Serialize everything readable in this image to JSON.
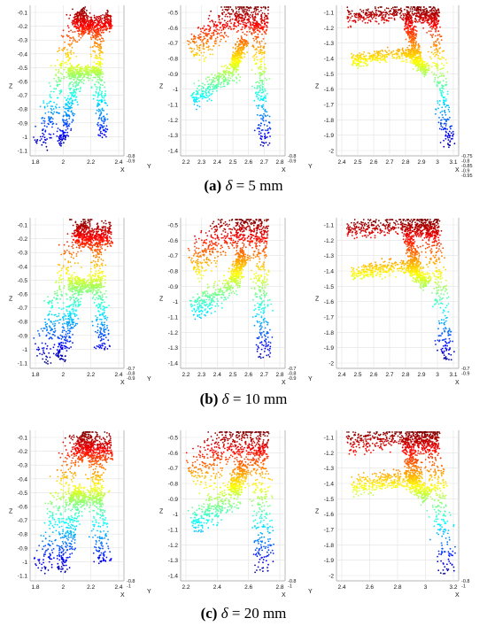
{
  "figure": {
    "rows": [
      {
        "caption": {
          "label": "(a)",
          "symbol": "δ",
          "rest": " = 5 mm"
        },
        "panels": [
          {
            "yticks": [
              "-0.1",
              "-0.2",
              "-0.3",
              "-0.4",
              "-0.5",
              "-0.6",
              "-0.7",
              "-0.8",
              "-0.9",
              "-1",
              "-1.1"
            ],
            "xticks": [
              "1.8",
              "2",
              "2.2",
              "2.4"
            ],
            "zlabel": "Z",
            "xlabel": "X",
            "ylabel": "Y",
            "corner": [
              "-0.8",
              "-0.9"
            ]
          },
          {
            "yticks": [
              "-0.5",
              "-0.6",
              "-0.7",
              "-0.8",
              "-0.9",
              "-1",
              "-1.1",
              "-1.2",
              "-1.3",
              "-1.4"
            ],
            "xticks": [
              "2.2",
              "2.3",
              "2.4",
              "2.5",
              "2.6",
              "2.7",
              "2.8"
            ],
            "zlabel": "Z",
            "xlabel": "X",
            "ylabel": "Y",
            "corner": [
              "-0.8",
              "-0.9"
            ]
          },
          {
            "yticks": [
              "-1.1",
              "-1.2",
              "-1.3",
              "-1.4",
              "-1.5",
              "-1.6",
              "-1.7",
              "-1.8",
              "-1.9",
              "-2"
            ],
            "xticks": [
              "2.4",
              "2.5",
              "2.6",
              "2.7",
              "2.8",
              "2.9",
              "3",
              "3.1"
            ],
            "zlabel": "Z",
            "xlabel": "X",
            "ylabel": "",
            "corner": [
              "-0.75",
              "-0.8",
              "-0.85",
              "-0.9",
              "-0.95"
            ]
          }
        ]
      },
      {
        "caption": {
          "label": "(b)",
          "symbol": "δ",
          "rest": " = 10 mm"
        },
        "panels": [
          {
            "yticks": [
              "-0.1",
              "-0.2",
              "-0.3",
              "-0.4",
              "-0.5",
              "-0.6",
              "-0.7",
              "-0.8",
              "-0.9",
              "-1",
              "-1.1"
            ],
            "xticks": [
              "1.8",
              "2",
              "2.2",
              "2.4"
            ],
            "zlabel": "Z",
            "xlabel": "X",
            "ylabel": "Y",
            "corner": [
              "-0.7",
              "-0.8",
              "-0.9"
            ]
          },
          {
            "yticks": [
              "-0.5",
              "-0.6",
              "-0.7",
              "-0.8",
              "-0.9",
              "-1",
              "-1.1",
              "-1.2",
              "-1.3",
              "-1.4"
            ],
            "xticks": [
              "2.2",
              "2.3",
              "2.4",
              "2.5",
              "2.6",
              "2.7",
              "2.8"
            ],
            "zlabel": "Z",
            "xlabel": "X",
            "ylabel": "Y",
            "corner": [
              "-0.7",
              "-0.8",
              "-0.9"
            ]
          },
          {
            "yticks": [
              "-1.1",
              "-1.2",
              "-1.3",
              "-1.4",
              "-1.5",
              "-1.6",
              "-1.7",
              "-1.8",
              "-1.9",
              "-2"
            ],
            "xticks": [
              "2.4",
              "2.5",
              "2.6",
              "2.7",
              "2.8",
              "2.9",
              "3",
              "3.1"
            ],
            "zlabel": "Z",
            "xlabel": "X",
            "ylabel": "",
            "corner": [
              "-0.7",
              "-0.9"
            ]
          }
        ]
      },
      {
        "caption": {
          "label": "(c)",
          "symbol": "δ",
          "rest": " = 20 mm"
        },
        "panels": [
          {
            "yticks": [
              "-0.1",
              "-0.2",
              "-0.3",
              "-0.4",
              "-0.5",
              "-0.6",
              "-0.7",
              "-0.8",
              "-0.9",
              "-1",
              "-1.1"
            ],
            "xticks": [
              "1.8",
              "2",
              "2.2",
              "2.4"
            ],
            "zlabel": "Z",
            "xlabel": "X",
            "ylabel": "Y",
            "corner": [
              "-0.8",
              "-1"
            ]
          },
          {
            "yticks": [
              "-0.5",
              "-0.6",
              "-0.7",
              "-0.8",
              "-0.9",
              "-1",
              "-1.1",
              "-1.2",
              "-1.3",
              "-1.4"
            ],
            "xticks": [
              "2.2",
              "2.4",
              "2.6",
              "2.8"
            ],
            "zlabel": "Z",
            "xlabel": "X",
            "ylabel": "Y",
            "corner": [
              "-0.8",
              "-1"
            ]
          },
          {
            "yticks": [
              "-1.1",
              "-1.2",
              "-1.3",
              "-1.4",
              "-1.5",
              "-1.6",
              "-1.7",
              "-1.8",
              "-1.9",
              "-2"
            ],
            "xticks": [
              "2.4",
              "2.6",
              "2.8",
              "3",
              "3.2"
            ],
            "zlabel": "Z",
            "xlabel": "X",
            "ylabel": "",
            "corner": [
              "-0.8",
              "-1"
            ]
          }
        ]
      }
    ]
  }
}
